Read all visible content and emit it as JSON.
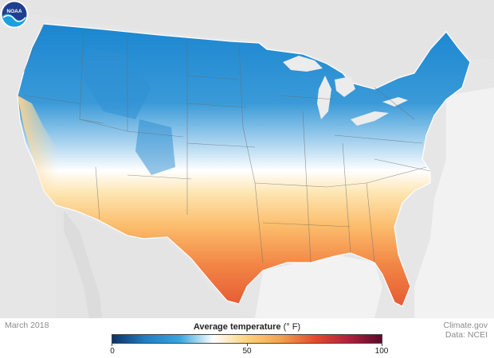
{
  "map": {
    "period": "March 2018",
    "logo_text": "NOAA"
  },
  "legend": {
    "title": "Average temperature",
    "unit": "(° F)",
    "min": 0,
    "max": 100,
    "ticks": [
      "0",
      "50",
      "100"
    ],
    "colors": [
      "#0d3266",
      "#1f7fc6",
      "#35a6e0",
      "#ffffff",
      "#ffd37a",
      "#f4a24a",
      "#e74b2b",
      "#b51f3c",
      "#5d0a2a"
    ]
  },
  "credit": {
    "source": "Climate.gov",
    "data": "Data: NCEI"
  }
}
